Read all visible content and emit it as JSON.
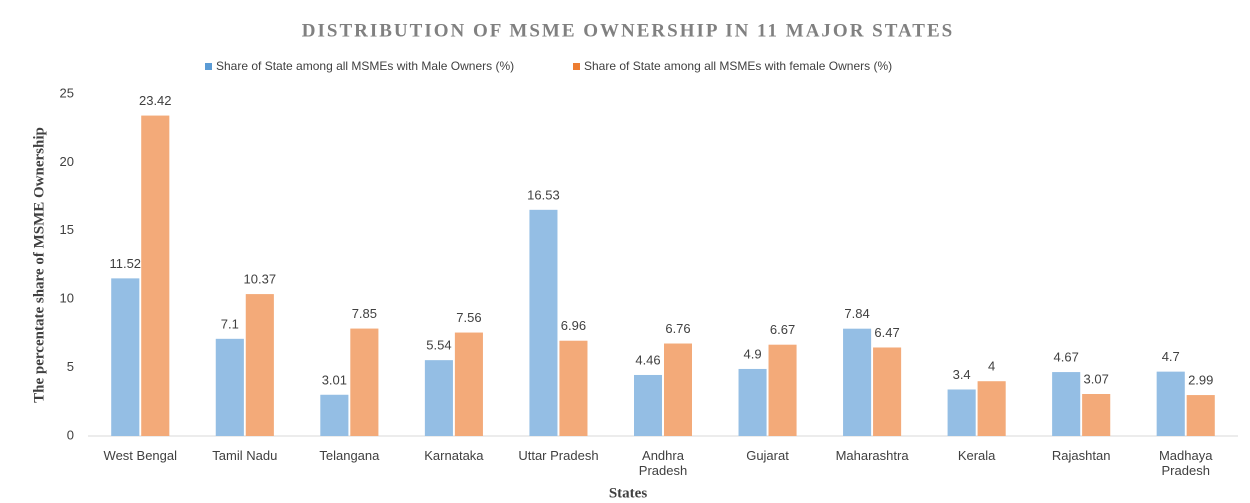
{
  "chart_data": {
    "type": "bar",
    "title": "DISTRIBUTION OF MSME OWNERSHIP IN 11 MAJOR STATES",
    "x_label": "States",
    "y_label": "The percentate share of  MSME Ownership",
    "categories": [
      "West Bengal",
      "Tamil Nadu",
      "Telangana",
      "Karnataka",
      "Uttar Pradesh",
      "Andhra Pradesh",
      "Gujarat",
      "Maharashtra",
      "Kerala",
      "Rajashtan",
      "Madhaya Pradesh"
    ],
    "series": [
      {
        "name": "Share of State among all MSMEs with Male Owners (%)",
        "color": "#5b9bd5",
        "values": [
          11.52,
          7.1,
          3.01,
          5.54,
          16.53,
          4.46,
          4.9,
          7.84,
          3.4,
          4.67,
          4.7
        ]
      },
      {
        "name": "Share of State among all MSMEs with female Owners (%)",
        "color": "#ed7d31",
        "values": [
          23.42,
          10.37,
          7.85,
          7.56,
          6.96,
          6.76,
          6.67,
          6.47,
          4,
          3.07,
          2.99
        ]
      }
    ],
    "ylim": [
      0,
      25
    ],
    "yticks": [
      0,
      5,
      10,
      15,
      20,
      25
    ],
    "grid": false,
    "legend": "top"
  }
}
